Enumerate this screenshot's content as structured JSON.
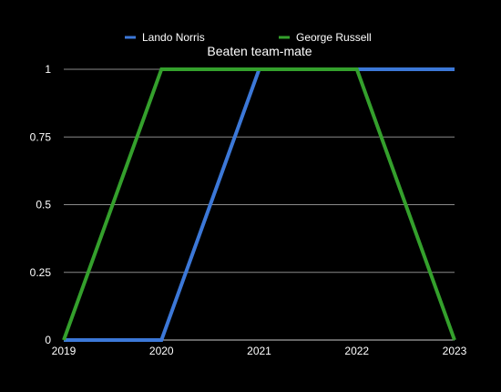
{
  "chart_data": {
    "type": "line",
    "title": "Beaten team-mate",
    "xlabel": "",
    "ylabel": "",
    "categories": [
      "2019",
      "2020",
      "2021",
      "2022",
      "2023"
    ],
    "ylim": [
      0,
      1
    ],
    "yticks": [
      "0",
      "0.25",
      "0.5",
      "0.75",
      "1"
    ],
    "grid": true,
    "legend_position": "top",
    "background": "#000000",
    "series": [
      {
        "name": "Lando Norris",
        "color": "#3c78d8",
        "values": [
          0,
          0,
          1,
          1,
          1
        ]
      },
      {
        "name": "George Russell",
        "color": "#34a02c",
        "values": [
          0,
          1,
          1,
          1,
          0
        ]
      }
    ]
  }
}
